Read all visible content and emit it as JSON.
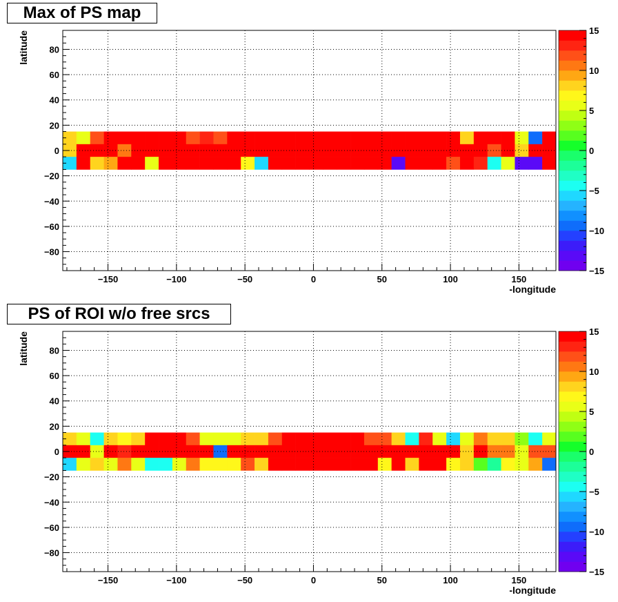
{
  "chart_data": [
    {
      "type": "heatmap",
      "title": "Max of PS map",
      "xlabel": "-longitude",
      "ylabel": "latitude",
      "xlim": [
        -183,
        177
      ],
      "ylim": [
        -95,
        95
      ],
      "x_ticks": [
        -150,
        -100,
        -50,
        0,
        50,
        100,
        150
      ],
      "y_ticks": [
        -80,
        -60,
        -40,
        -20,
        0,
        20,
        40,
        60,
        80
      ],
      "x_tick_labels": [
        "−150",
        "−100",
        "−50",
        "0",
        "50",
        "100",
        "150"
      ],
      "y_tick_labels": [
        "−80",
        "−60",
        "−40",
        "−20",
        "0",
        "20",
        "40",
        "60",
        "80"
      ],
      "grid": true,
      "zlim": [
        -15,
        15
      ],
      "z_ticks": [
        -15,
        -10,
        -5,
        0,
        5,
        10,
        15
      ],
      "z_tick_labels": [
        "−15",
        "−10",
        "−5",
        "0",
        "5",
        "10",
        "15"
      ],
      "bin_width_deg": 10,
      "lat_bins": [
        10,
        0,
        -10
      ],
      "lon_bins": [
        -178,
        -168,
        -158,
        -148,
        -138,
        -128,
        -118,
        -108,
        -98,
        -88,
        -78,
        -68,
        -58,
        -48,
        -38,
        -28,
        -18,
        -8,
        2,
        12,
        22,
        32,
        42,
        52,
        62,
        72,
        82,
        92,
        102,
        112,
        122,
        132,
        142,
        152,
        162,
        172
      ],
      "values": [
        [
          8,
          6,
          12,
          15,
          15,
          15,
          15,
          15,
          15,
          12,
          13,
          12,
          15,
          15,
          15,
          15,
          15,
          15,
          15,
          15,
          15,
          15,
          15,
          15,
          15,
          15,
          15,
          15,
          15,
          8,
          15,
          15,
          15,
          5,
          -10,
          15
        ],
        [
          8,
          15,
          14,
          15,
          11,
          15,
          15,
          15,
          15,
          15,
          15,
          15,
          15,
          15,
          15,
          15,
          15,
          15,
          15,
          15,
          15,
          15,
          15,
          15,
          15,
          15,
          15,
          15,
          15,
          15,
          15,
          12,
          15,
          8,
          14,
          15
        ],
        [
          -6,
          14,
          8,
          9,
          15,
          15,
          5,
          15,
          14,
          14,
          15,
          15,
          15,
          7,
          -6,
          15,
          15,
          15,
          15,
          15,
          15,
          15,
          15,
          15,
          -13,
          15,
          15,
          15,
          12,
          15,
          13,
          -4,
          5,
          -13,
          -13,
          15
        ]
      ]
    },
    {
      "type": "heatmap",
      "title": "PS of ROI w/o free srcs",
      "xlabel": "-longitude",
      "ylabel": "latitude",
      "xlim": [
        -183,
        177
      ],
      "ylim": [
        -95,
        95
      ],
      "x_ticks": [
        -150,
        -100,
        -50,
        0,
        50,
        100,
        150
      ],
      "y_ticks": [
        -80,
        -60,
        -40,
        -20,
        0,
        20,
        40,
        60,
        80
      ],
      "x_tick_labels": [
        "−150",
        "−100",
        "−50",
        "0",
        "50",
        "100",
        "150"
      ],
      "y_tick_labels": [
        "−80",
        "−60",
        "−40",
        "−20",
        "0",
        "20",
        "40",
        "60",
        "80"
      ],
      "grid": true,
      "zlim": [
        -15,
        15
      ],
      "z_ticks": [
        -15,
        -10,
        -5,
        0,
        5,
        10,
        15
      ],
      "z_tick_labels": [
        "−15",
        "−10",
        "−5",
        "0",
        "5",
        "10",
        "15"
      ],
      "bin_width_deg": 10,
      "lat_bins": [
        10,
        0,
        -10
      ],
      "lon_bins": [
        -178,
        -168,
        -158,
        -148,
        -138,
        -128,
        -118,
        -108,
        -98,
        -88,
        -78,
        -68,
        -58,
        -48,
        -38,
        -28,
        -18,
        -8,
        2,
        12,
        22,
        32,
        42,
        52,
        62,
        72,
        82,
        92,
        102,
        112,
        122,
        132,
        142,
        152,
        162,
        172
      ],
      "values": [
        [
          8,
          6,
          -4,
          8,
          7,
          8,
          15,
          15,
          15,
          12,
          6,
          6,
          5,
          8,
          8,
          12,
          15,
          15,
          15,
          15,
          15,
          14,
          12,
          12,
          8,
          -4,
          13,
          5,
          -6,
          6,
          11,
          8,
          8,
          3,
          -5,
          5
        ],
        [
          15,
          15,
          5,
          15,
          13,
          15,
          15,
          15,
          15,
          15,
          15,
          -10,
          15,
          15,
          15,
          15,
          15,
          15,
          15,
          15,
          15,
          15,
          15,
          15,
          15,
          15,
          15,
          15,
          15,
          8,
          14,
          11,
          11,
          6,
          12,
          12
        ],
        [
          -6,
          6,
          8,
          5,
          10,
          6,
          -4,
          -4,
          5,
          11,
          7,
          7,
          7,
          12,
          8,
          15,
          15,
          15,
          15,
          15,
          15,
          15,
          15,
          7,
          15,
          8,
          15,
          15,
          7,
          8,
          2,
          -2,
          7,
          5,
          9,
          -10
        ]
      ]
    }
  ]
}
